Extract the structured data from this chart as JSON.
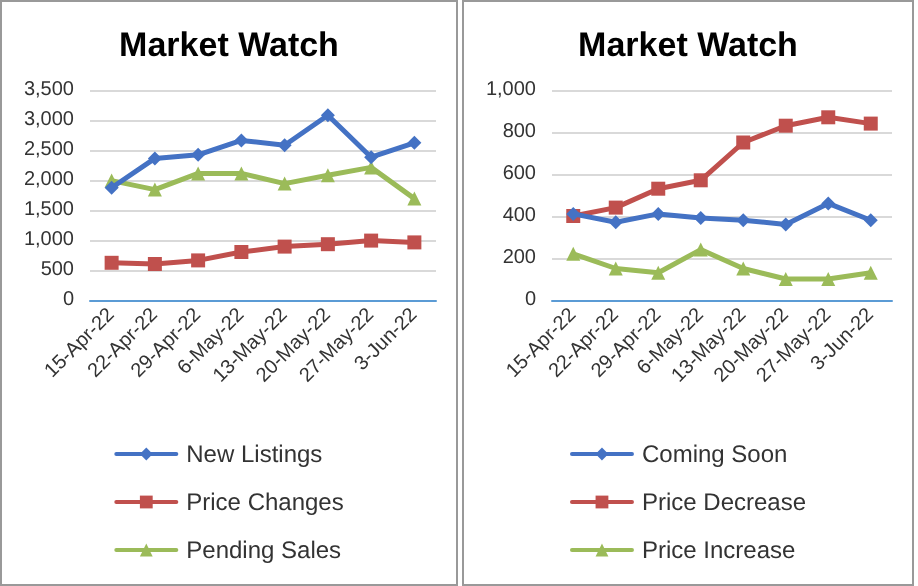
{
  "chart_data": [
    {
      "type": "line",
      "title": "Market Watch",
      "categories": [
        "15-Apr-22",
        "22-Apr-22",
        "29-Apr-22",
        "6-May-22",
        "13-May-22",
        "20-May-22",
        "27-May-22",
        "3-Jun-22"
      ],
      "ylim": [
        0,
        3500
      ],
      "yticks": [
        0,
        {
          "value": 500,
          "label": "500"
        },
        {
          "value": 1000,
          "label": "1,000"
        },
        {
          "value": 1500,
          "label": "1,500"
        },
        {
          "value": 2000,
          "label": "2,000"
        },
        {
          "value": 2500,
          "label": "2,500"
        },
        {
          "value": 3000,
          "label": "3,000"
        },
        {
          "value": 3500,
          "label": "3,500"
        }
      ],
      "grid": "y",
      "legend": "bottom",
      "series": [
        {
          "name": "New Listings",
          "color": "#4472c4",
          "marker": "diamond",
          "values": [
            1870,
            2360,
            2420,
            2660,
            2580,
            3080,
            2380,
            2620
          ]
        },
        {
          "name": "Price Changes",
          "color": "#c0504d",
          "marker": "square",
          "values": [
            620,
            600,
            660,
            800,
            890,
            930,
            990,
            960
          ]
        },
        {
          "name": "Pending Sales",
          "color": "#9bbb59",
          "marker": "triangle",
          "values": [
            1990,
            1840,
            2110,
            2110,
            1940,
            2080,
            2210,
            1690
          ]
        }
      ]
    },
    {
      "type": "line",
      "title": "Market Watch",
      "categories": [
        "15-Apr-22",
        "22-Apr-22",
        "29-Apr-22",
        "6-May-22",
        "13-May-22",
        "20-May-22",
        "27-May-22",
        "3-Jun-22"
      ],
      "ylim": [
        0,
        1000
      ],
      "yticks": [
        0,
        200,
        400,
        600,
        800,
        {
          "value": 1000,
          "label": "1,000"
        }
      ],
      "grid": "y",
      "legend": "bottom",
      "series": [
        {
          "name": "Coming Soon",
          "color": "#4472c4",
          "marker": "diamond",
          "values": [
            410,
            370,
            410,
            390,
            380,
            360,
            460,
            380
          ]
        },
        {
          "name": "Price Decrease",
          "color": "#c0504d",
          "marker": "square",
          "values": [
            400,
            440,
            530,
            570,
            750,
            830,
            870,
            840
          ]
        },
        {
          "name": "Price Increase",
          "color": "#9bbb59",
          "marker": "triangle",
          "values": [
            220,
            150,
            130,
            240,
            150,
            100,
            100,
            130
          ]
        }
      ]
    }
  ]
}
